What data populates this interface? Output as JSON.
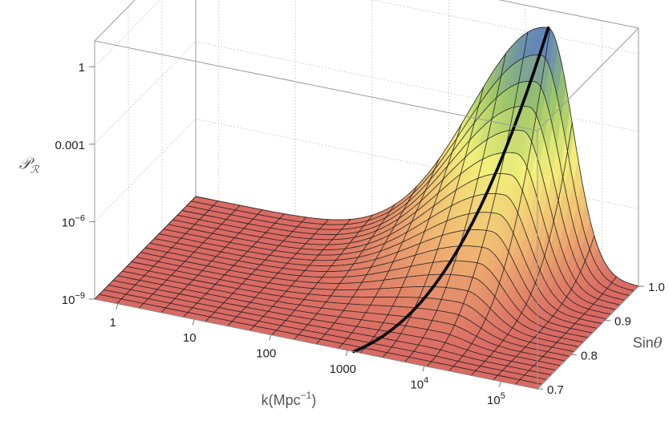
{
  "chart_data": {
    "type": "surface3d",
    "title": "",
    "x_axis": {
      "label_main": "k(Mpc",
      "label_sup": "−1",
      "label_close": ")",
      "scale": "log",
      "range": [
        0.5,
        300000
      ],
      "ticks": [
        {
          "value": 1,
          "base": "1",
          "sup": ""
        },
        {
          "value": 10,
          "base": "10",
          "sup": ""
        },
        {
          "value": 100,
          "base": "100",
          "sup": ""
        },
        {
          "value": 1000,
          "base": "1000",
          "sup": ""
        },
        {
          "value": 10000,
          "base": "10",
          "sup": "4"
        },
        {
          "value": 100000,
          "base": "10",
          "sup": "5"
        }
      ]
    },
    "y_axis": {
      "label": "Sinθ",
      "label_base": "Sin",
      "label_greek": "θ",
      "scale": "linear",
      "range": [
        0.7,
        1.0
      ],
      "ticks": [
        {
          "value": 0.7,
          "label": "0.7"
        },
        {
          "value": 0.8,
          "label": "0.8"
        },
        {
          "value": 0.9,
          "label": "0.9"
        },
        {
          "value": 1.0,
          "label": "1.0"
        }
      ]
    },
    "z_axis": {
      "label": "𝒫ℛ",
      "label_main": "𝒫",
      "label_sub": "ℛ",
      "scale": "log",
      "range": [
        1e-09,
        10
      ],
      "ticks": [
        {
          "value": 1e-09,
          "base": "10",
          "sup": "−9"
        },
        {
          "value": 1e-06,
          "base": "10",
          "sup": "−6"
        },
        {
          "value": 0.001,
          "base": "0.001",
          "sup": ""
        },
        {
          "value": 1,
          "base": "1",
          "sup": ""
        }
      ]
    },
    "surface": {
      "baseline_log10_P": -9,
      "ridge": {
        "peak_log10_P_at_sin_theta_1": 0.3,
        "log10_k_peak_at_sin_theta_0_7": 3.8,
        "log10_k_peak_at_sin_theta_1": 4.3,
        "low_side_width_log10_k": 1.0,
        "high_side_width_log10_k": 0.32
      },
      "highlighted_curve": {
        "log10_k": 3.0
      }
    },
    "colors": {
      "low": "#d96a64",
      "mid_low": "#f0b672",
      "mid": "#f3f07a",
      "mid_high": "#9ec868",
      "high": "#5578c8",
      "mesh": "#1a1a1a",
      "highlight": "#000000"
    }
  }
}
